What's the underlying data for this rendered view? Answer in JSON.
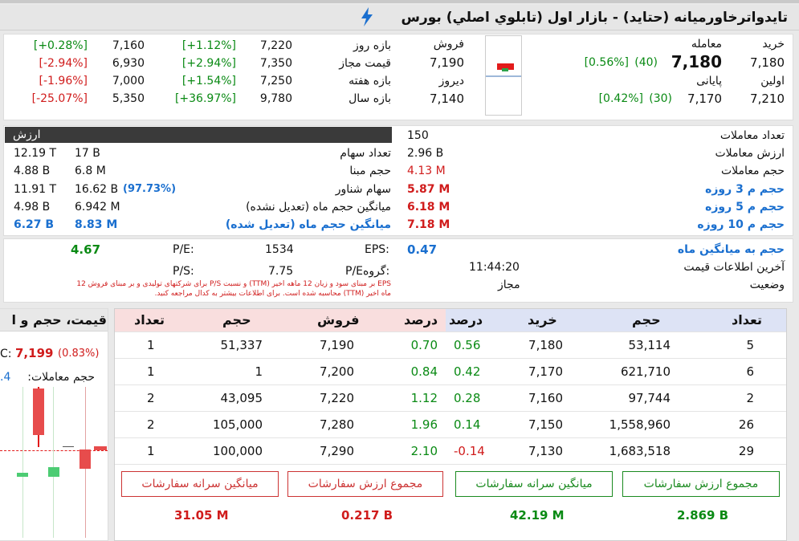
{
  "title": "تايدواترخاورميانه (حتايد) - بازار اول (تابلوي اصلي) بورس",
  "quote": {
    "buy_label": "خرید",
    "buy": "7,180",
    "trade_label": "معامله",
    "trade": "7,180",
    "trade_change": "(40)",
    "trade_pct": "[0.56%]",
    "sell_label": "فروش",
    "sell": "7,190",
    "first_label": "اولین",
    "first": "7,210",
    "last_label": "پایانی",
    "last": "7,170",
    "last_change": "(30)",
    "last_pct": "[0.42%]",
    "yesterday_label": "دیروز",
    "yesterday": "7,140"
  },
  "ranges": [
    {
      "label": "بازه روز",
      "high": "7,220",
      "high_pct": "[+1.12%]",
      "low": "7,160",
      "low_pct": "[+0.28%]"
    },
    {
      "label": "قیمت مجاز",
      "high": "7,350",
      "high_pct": "[+2.94%]",
      "low": "6,930",
      "low_pct": "[-2.94%]"
    },
    {
      "label": "بازه هفته",
      "high": "7,250",
      "high_pct": "[+1.54%]",
      "low": "7,000",
      "low_pct": "[-1.96%]"
    },
    {
      "label": "بازه سال",
      "high": "9,780",
      "high_pct": "[+36.97%]",
      "low": "5,350",
      "low_pct": "[-25.07%]"
    }
  ],
  "stats_left": {
    "header": "ارزش",
    "rows": [
      {
        "label": "تعداد سهام",
        "v1": "17 B",
        "v2": "12.19 T"
      },
      {
        "label": "حجم مبنا",
        "v1": "6.8 M",
        "v2": "4.88 B"
      },
      {
        "label": "سهام شناور",
        "v1": "16.62 B",
        "pct": "(97.73%)",
        "v2": "11.91 T"
      },
      {
        "label": "میانگین حجم ماه (تعدیل نشده)",
        "v1": "6.942 M",
        "v2": "4.98 B"
      },
      {
        "label": "میانگین حجم ماه (تعدیل شده)",
        "v1": "8.83 M",
        "v2": "6.27 B"
      }
    ]
  },
  "stats_right": {
    "rows": [
      {
        "label": "تعداد معاملات",
        "value": "150"
      },
      {
        "label": "ارزش معاملات",
        "value": "2.96 B"
      },
      {
        "label": "حجم معاملات",
        "value": "4.13 M"
      },
      {
        "label": "حجم م 3 روزه",
        "value": "5.87 M"
      },
      {
        "label": "حجم م 5 روزه",
        "value": "6.18 M"
      },
      {
        "label": "حجم م 10 روزه",
        "value": "7.18 M"
      }
    ]
  },
  "ratios": {
    "eps_label": "EPS:",
    "eps": "1534",
    "pe_label": "P/E:",
    "pe": "4.67",
    "group_pe_label": "P/Eگروه:",
    "group_pe": "7.75",
    "ps_label": "P/S:",
    "ps": "",
    "note1": "EPS بر مبنای سود و زیان 12 ماهه اخیر (TTM) و نسبت P/S برای شرکتهای تولیدی و بر مبنای فروش 12",
    "note2": "ماه اخیر (TTM) محاسبه شده است. برای اطلاعات بیشتر به کدال مراجعه کنید.",
    "vol_avg_label": "حجم به میانگین ماه",
    "vol_avg": "0.47",
    "last_info_label": "آخرین اطلاعات قیمت",
    "last_info": "11:44:20",
    "status_label": "وضعیت",
    "status": "مجاز"
  },
  "side": {
    "title": "قیمت، حجم و ا",
    "price_prefix": "C:",
    "price": "7,199",
    "price_pct": "(0.83%)",
    "vol_label": "حجم معاملات:",
    "vol_value": ".4"
  },
  "orderbook": {
    "headers": {
      "buy_count": "تعداد",
      "buy_vol": "حجم",
      "buy_price": "خرید",
      "buy_pct": "درصد",
      "sell_pct": "درصد",
      "sell_price": "فروش",
      "sell_vol": "حجم",
      "sell_count": "تعداد"
    },
    "rows": [
      {
        "bc": "5",
        "bv": "53,114",
        "bp": "7,180",
        "bpct": "0.56",
        "spct": "0.70",
        "sp": "7,190",
        "sv": "51,337",
        "sc": "1"
      },
      {
        "bc": "6",
        "bv": "621,710",
        "bp": "7,170",
        "bpct": "0.42",
        "spct": "0.84",
        "sp": "7,200",
        "sv": "1",
        "sc": "1"
      },
      {
        "bc": "2",
        "bv": "97,744",
        "bp": "7,160",
        "bpct": "0.28",
        "spct": "1.12",
        "sp": "7,220",
        "sv": "43,095",
        "sc": "2"
      },
      {
        "bc": "26",
        "bv": "1,558,960",
        "bp": "7,150",
        "bpct": "0.14",
        "spct": "1.96",
        "sp": "7,280",
        "sv": "105,000",
        "sc": "2"
      },
      {
        "bc": "29",
        "bv": "1,683,518",
        "bp": "7,130",
        "bpct": "-0.14",
        "spct": "2.10",
        "sp": "7,290",
        "sv": "100,000",
        "sc": "1"
      }
    ],
    "buttons": {
      "buy_total": "مجموع ارزش سفارشات",
      "buy_avg": "میانگین سرانه سفارشات",
      "sell_total": "مجموع ارزش سفارشات",
      "sell_avg": "میانگین سرانه سفارشات"
    },
    "totals": {
      "buy_total": "2.869 B",
      "buy_avg": "42.19 M",
      "sell_total": "0.217 B",
      "sell_avg": "31.05 M"
    }
  },
  "colors": {
    "buy_header": "#dde3f5",
    "sell_header": "#f9dede",
    "green": "#0a8a14",
    "red": "#d01c1c",
    "blue": "#1a6fcf"
  }
}
